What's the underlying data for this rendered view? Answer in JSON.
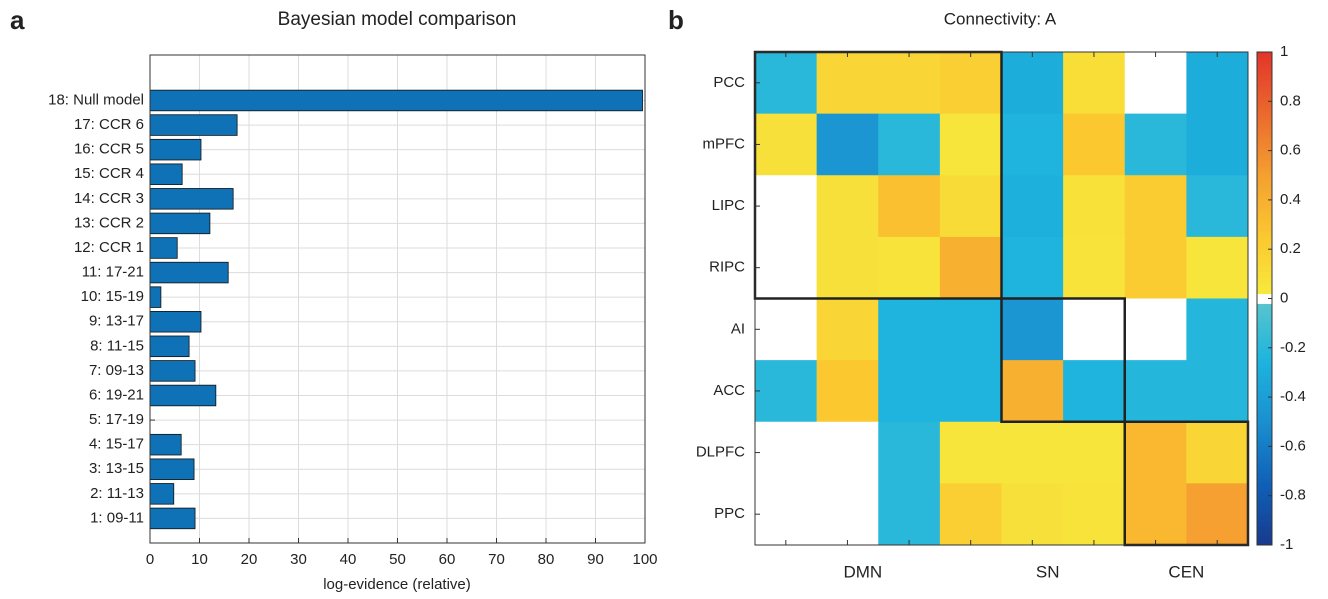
{
  "chart_data": [
    {
      "type": "hbar",
      "panel_label": "a",
      "title": "Bayesian model comparison",
      "x_label": "log-evidence (relative)",
      "categories": [
        "18: Null model",
        "17: CCR 6",
        "16: CCR 5",
        "15: CCR 4",
        "14: CCR 3",
        "13: CCR 2",
        "12: CCR 1",
        "11: 17-21",
        "10: 15-19",
        "9: 13-17",
        "8: 11-15",
        "7: 09-13",
        "6: 19-21",
        "5: 17-19",
        "4: 15-17",
        "3: 13-15",
        "2: 11-13",
        "1: 09-11"
      ],
      "values": [
        99.5,
        17.6,
        10.3,
        6.5,
        16.8,
        12.1,
        5.5,
        15.8,
        2.2,
        10.3,
        7.9,
        9.1,
        13.3,
        0,
        6.3,
        8.9,
        4.8,
        9.1
      ],
      "color": "#0f72b6",
      "xlim": [
        0,
        100
      ],
      "xticks": [
        0,
        10,
        20,
        30,
        40,
        50,
        60,
        70,
        80,
        90,
        100
      ],
      "grid": true
    },
    {
      "type": "heatmap",
      "panel_label": "b",
      "title": "Connectivity: A",
      "categories": [
        "PCC",
        "mPFC",
        "LIPC",
        "RIPC",
        "AI",
        "ACC",
        "DLPFC",
        "PPC"
      ],
      "groups": [
        "DMN",
        "SN",
        "CEN"
      ],
      "values": [
        [
          -0.2,
          0.15,
          0.15,
          0.2,
          -0.3,
          0.1,
          0,
          -0.3
        ],
        [
          0.08,
          -0.45,
          -0.2,
          0.05,
          -0.25,
          0.25,
          -0.2,
          -0.3
        ],
        [
          0,
          0.08,
          0.3,
          0.12,
          -0.28,
          0.07,
          0.22,
          -0.2
        ],
        [
          0,
          0.08,
          0.06,
          0.4,
          -0.25,
          0.06,
          0.22,
          0.05
        ],
        [
          0,
          0.15,
          -0.25,
          -0.25,
          -0.45,
          0,
          0,
          -0.22
        ],
        [
          -0.2,
          0.25,
          -0.25,
          -0.25,
          0.4,
          -0.25,
          -0.22,
          -0.22
        ],
        [
          0,
          0,
          -0.2,
          0.05,
          0.05,
          0.05,
          0.35,
          0.15
        ],
        [
          0,
          0,
          -0.2,
          0.2,
          0.08,
          0.06,
          0.35,
          0.5
        ]
      ],
      "zlim": [
        -1,
        1
      ],
      "zticks": [
        -1,
        -0.8,
        -0.6,
        -0.4,
        -0.2,
        0,
        0.2,
        0.4,
        0.6,
        0.8,
        1
      ],
      "colormap": {
        "negative": [
          "#5cc6cc",
          "#1eb4de",
          "#1a8fd0",
          "#1060b8",
          "#173a8e"
        ],
        "zero": "#ffffff",
        "positive": [
          "#f7ec3e",
          "#fbc830",
          "#f5a030",
          "#ea6a2e",
          "#e3352a"
        ]
      }
    }
  ]
}
